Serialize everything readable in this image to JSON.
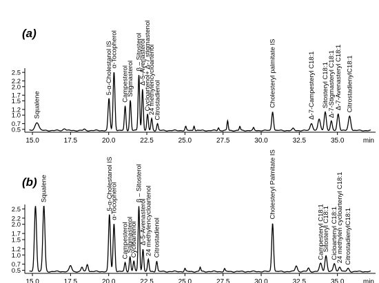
{
  "chart_data": [
    {
      "type": "line",
      "panel_label": "(a)",
      "x_unit": "min",
      "xlim": [
        14.5,
        37.5
      ],
      "ylim": [
        0.4,
        2.6
      ],
      "x_ticks": [
        15.0,
        17.5,
        20.0,
        22.5,
        25.0,
        27.5,
        30.0,
        32.5,
        35.0
      ],
      "x_tick_labels": [
        "15.0",
        "17.5",
        "20.0",
        "22.5",
        "25.0",
        "27.5",
        "30.0",
        "32.5",
        "35.0"
      ],
      "y_ticks": [
        0.5,
        0.7,
        1.0,
        1.2,
        1.5,
        1.7,
        2.0,
        2.2,
        2.5
      ],
      "y_tick_labels": [
        "0.5",
        "0.7",
        "1.0",
        "1.2",
        "1.5",
        "1.7",
        "2.0",
        "2.2",
        "2.5"
      ],
      "baseline": 0.46,
      "peaks": [
        {
          "x": 15.3,
          "y": 0.75,
          "w": 0.12,
          "label": "Squalene"
        },
        {
          "x": 17.1,
          "y": 0.53,
          "w": 0.08,
          "label": ""
        },
        {
          "x": 18.4,
          "y": 0.5,
          "w": 0.06,
          "label": ""
        },
        {
          "x": 20.02,
          "y": 1.58,
          "w": 0.06,
          "label": "5-α-Cholestanol IS"
        },
        {
          "x": 20.35,
          "y": 2.52,
          "w": 0.06,
          "label": "α-Tocopherol"
        },
        {
          "x": 21.08,
          "y": 1.32,
          "w": 0.05,
          "label": "Campesterol"
        },
        {
          "x": 21.42,
          "y": 1.52,
          "w": 0.05,
          "label": "Stigmasterol"
        },
        {
          "x": 21.98,
          "y": 2.42,
          "w": 0.05,
          "label": "β – Sitosterol"
        },
        {
          "x": 22.22,
          "y": 1.92,
          "w": 0.05,
          "label": "Δ-5-Avenasterol"
        },
        {
          "x": 22.55,
          "y": 1.02,
          "w": 0.05,
          "label": "Cycloartenol+ Δ-7 stigmastenol"
        },
        {
          "x": 22.82,
          "y": 0.88,
          "w": 0.05,
          "label": "24 methylencycloartenol"
        },
        {
          "x": 23.2,
          "y": 0.7,
          "w": 0.05,
          "label": "Citrostadienol"
        },
        {
          "x": 25.05,
          "y": 0.6,
          "w": 0.04,
          "label": ""
        },
        {
          "x": 25.6,
          "y": 0.63,
          "w": 0.04,
          "label": ""
        },
        {
          "x": 27.2,
          "y": 0.56,
          "w": 0.04,
          "label": ""
        },
        {
          "x": 27.8,
          "y": 0.8,
          "w": 0.04,
          "label": ""
        },
        {
          "x": 28.6,
          "y": 0.6,
          "w": 0.04,
          "label": ""
        },
        {
          "x": 29.5,
          "y": 0.55,
          "w": 0.04,
          "label": ""
        },
        {
          "x": 30.75,
          "y": 1.13,
          "w": 0.06,
          "label": "Cholesteryl palmitate IS"
        },
        {
          "x": 32.1,
          "y": 0.53,
          "w": 0.06,
          "label": ""
        },
        {
          "x": 33.3,
          "y": 0.72,
          "w": 0.08,
          "label": "Δ-7-Campesteryl C18:1"
        },
        {
          "x": 33.8,
          "y": 0.85,
          "w": 0.08,
          "label": ""
        },
        {
          "x": 34.2,
          "y": 1.12,
          "w": 0.07,
          "label": "Sitosteryl C18:1"
        },
        {
          "x": 34.6,
          "y": 0.78,
          "w": 0.06,
          "label": "Δ-7-Stigmasteryl C18:1"
        },
        {
          "x": 35.05,
          "y": 1.05,
          "w": 0.07,
          "label": "Δ-7-Avenasteryl C18:1"
        },
        {
          "x": 35.8,
          "y": 0.97,
          "w": 0.08,
          "label": "CitrostadienylC18:1"
        }
      ]
    },
    {
      "type": "line",
      "panel_label": "(b)",
      "x_unit": "min",
      "xlim": [
        14.5,
        37.5
      ],
      "ylim": [
        0.4,
        2.6
      ],
      "x_ticks": [
        15.0,
        17.5,
        20.0,
        22.5,
        25.0,
        27.5,
        30.0,
        32.5,
        35.0
      ],
      "x_tick_labels": [
        "15.0",
        "17.5",
        "20.0",
        "22.5",
        "25.0",
        "27.5",
        "30.0",
        "32.5",
        "35.0"
      ],
      "y_ticks": [
        0.5,
        0.7,
        1.0,
        1.2,
        1.5,
        1.7,
        2.0,
        2.2,
        2.5
      ],
      "y_tick_labels": [
        "0.5",
        "0.7",
        "1.0",
        "1.2",
        "1.5",
        "1.7",
        "2.0",
        "2.2",
        "2.5"
      ],
      "baseline": 0.46,
      "peaks": [
        {
          "x": 15.2,
          "y": 2.6,
          "w": 0.07,
          "label": ""
        },
        {
          "x": 15.75,
          "y": 2.6,
          "w": 0.07,
          "label": "Squalene"
        },
        {
          "x": 17.5,
          "y": 0.65,
          "w": 0.08,
          "label": ""
        },
        {
          "x": 18.25,
          "y": 0.6,
          "w": 0.06,
          "label": ""
        },
        {
          "x": 18.6,
          "y": 0.7,
          "w": 0.06,
          "label": ""
        },
        {
          "x": 20.05,
          "y": 2.32,
          "w": 0.06,
          "label": "5-α-Cholestanol IS"
        },
        {
          "x": 20.35,
          "y": 2.02,
          "w": 0.06,
          "label": "α-Tocopherol"
        },
        {
          "x": 21.08,
          "y": 0.75,
          "w": 0.05,
          "label": "Campesterol"
        },
        {
          "x": 21.4,
          "y": 0.95,
          "w": 0.05,
          "label": "Stigmasterol"
        },
        {
          "x": 21.65,
          "y": 0.8,
          "w": 0.05,
          "label": "Cycloartenol"
        },
        {
          "x": 21.98,
          "y": 2.6,
          "w": 0.05,
          "label": "β – Sitosterol"
        },
        {
          "x": 22.25,
          "y": 1.2,
          "w": 0.05,
          "label": "Δ-5-Avenasterol"
        },
        {
          "x": 22.6,
          "y": 0.85,
          "w": 0.05,
          "label": "24 methylencycloartenol"
        },
        {
          "x": 23.15,
          "y": 0.8,
          "w": 0.05,
          "label": "Citrostadienol"
        },
        {
          "x": 25.0,
          "y": 0.56,
          "w": 0.04,
          "label": ""
        },
        {
          "x": 26.0,
          "y": 0.6,
          "w": 0.04,
          "label": ""
        },
        {
          "x": 27.6,
          "y": 0.55,
          "w": 0.04,
          "label": ""
        },
        {
          "x": 30.75,
          "y": 2.05,
          "w": 0.06,
          "label": "Cholesteryl Palmitate IS"
        },
        {
          "x": 32.3,
          "y": 0.65,
          "w": 0.07,
          "label": ""
        },
        {
          "x": 33.1,
          "y": 0.57,
          "w": 0.06,
          "label": ""
        },
        {
          "x": 33.9,
          "y": 0.72,
          "w": 0.08,
          "label": "Campesteryl C18:1"
        },
        {
          "x": 34.25,
          "y": 0.98,
          "w": 0.07,
          "label": "Sitosteryl C18:1"
        },
        {
          "x": 34.8,
          "y": 0.72,
          "w": 0.07,
          "label": "Cicloartenyl C18:1"
        },
        {
          "x": 35.15,
          "y": 0.62,
          "w": 0.07,
          "label": "24 methylen cycloartenyl C18:1"
        },
        {
          "x": 35.7,
          "y": 0.56,
          "w": 0.07,
          "label": "CitrostadienylC18:1"
        }
      ]
    }
  ]
}
